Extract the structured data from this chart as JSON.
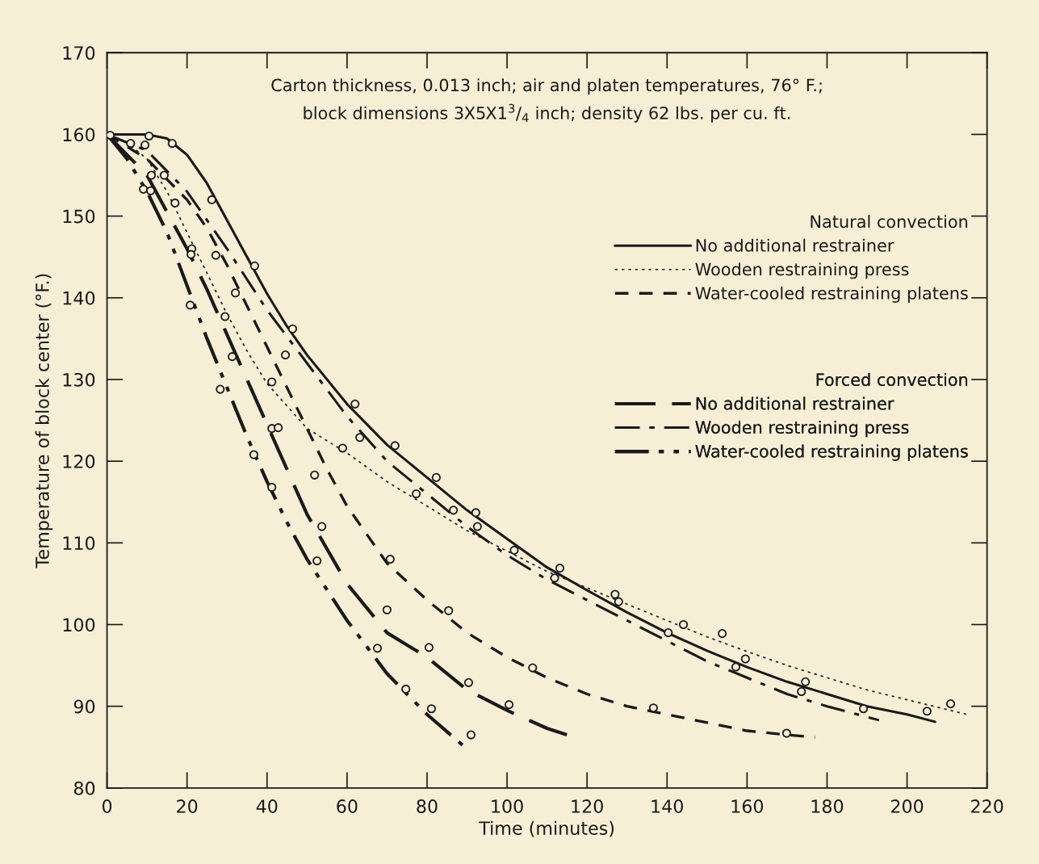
{
  "chart_data": {
    "type": "line",
    "xlabel": "Time (minutes)",
    "ylabel": "Temperature of block center (°F.)",
    "xlim": [
      0,
      220
    ],
    "xticks": [
      0,
      20,
      40,
      60,
      80,
      100,
      120,
      140,
      160,
      180,
      200,
      220
    ],
    "ylim": [
      80,
      170
    ],
    "yticks": [
      80,
      90,
      100,
      110,
      120,
      130,
      140,
      150,
      160,
      170
    ],
    "grid": false,
    "legend": "right",
    "marker": "none",
    "annotations": [
      "Carton thickness, 0.013 inch; air and platen temperatures, 76° F.;\nblock dimensions 3X5X1$^{3}$/$_{4}$ inch; density 62 lbs. per cu. ft.",
      "Natural convection",
      "Forced convection"
    ],
    "series": [
      {
        "name": "No additional restrainer",
        "color": "#1a1a1a",
        "line_style": "solid",
        "x": [
          0,
          10,
          15,
          20,
          25,
          30,
          35,
          40,
          45,
          50,
          60,
          70,
          80,
          90,
          100,
          110,
          120,
          130,
          140,
          150,
          160,
          170,
          180,
          190,
          200,
          207
        ],
        "values": [
          160,
          160,
          159.5,
          157.5,
          154,
          149.5,
          145,
          140.5,
          136.5,
          133,
          127,
          122,
          118,
          114,
          110.5,
          107,
          104.2,
          101.5,
          99,
          96.8,
          94.8,
          93,
          91.5,
          90,
          89,
          88.1
        ]
      },
      {
        "name": "Wooden restraining press",
        "color": "#1a1a1a",
        "line_style": "dotted",
        "x": [
          0,
          5,
          10,
          15,
          20,
          25,
          30,
          35,
          40,
          50,
          60,
          70,
          80,
          90,
          100,
          110,
          120,
          130,
          140,
          150,
          160,
          170,
          180,
          190,
          200,
          210,
          215
        ],
        "values": [
          160,
          159,
          157,
          153,
          148,
          143,
          138,
          133.5,
          129.5,
          124,
          121,
          117.5,
          114.5,
          111.5,
          109,
          106.5,
          104.5,
          102.5,
          100.5,
          98.5,
          96.7,
          95,
          93.5,
          92,
          90.8,
          89.6,
          89
        ]
      },
      {
        "name": "Water-cooled restraining platens",
        "color": "#1a1a1a",
        "line_style": "dashed",
        "x": [
          0,
          10,
          20,
          25,
          30,
          35,
          40,
          45,
          50,
          55,
          60,
          70,
          80,
          90,
          100,
          110,
          120,
          130,
          140,
          150,
          160,
          170,
          177
        ],
        "values": [
          160,
          157,
          152,
          148.5,
          144,
          139,
          134,
          129,
          124,
          119,
          114.5,
          107.5,
          103,
          99,
          96,
          93.5,
          91.5,
          90,
          89,
          88,
          87,
          86.5,
          86.2
        ]
      },
      {
        "name": "No additional restrainer",
        "color": "#1a1a1a",
        "line_style": "longdash",
        "x": [
          0,
          10,
          20,
          25,
          30,
          35,
          40,
          45,
          50,
          60,
          70,
          80,
          90,
          100,
          110,
          115
        ],
        "values": [
          160,
          155,
          146,
          141,
          135.5,
          130,
          124.5,
          119,
          113.5,
          105,
          99,
          96,
          92,
          89.5,
          87.3,
          86.5
        ]
      },
      {
        "name": "Wooden restraining press",
        "color": "#1a1a1a",
        "line_style": "dashdot",
        "x": [
          0,
          10,
          20,
          30,
          40,
          50,
          60,
          70,
          80,
          90,
          100,
          110,
          120,
          130,
          140,
          150,
          160,
          170,
          180,
          193
        ],
        "values": [
          160,
          158,
          153,
          146,
          138.5,
          132,
          125.5,
          120,
          116,
          112,
          108.5,
          105.5,
          103,
          100.5,
          98,
          95.5,
          93.5,
          91.5,
          90,
          88.3
        ]
      },
      {
        "name": "Water-cooled restraining platens",
        "color": "#1a1a1a",
        "line_style": "dashdotdot",
        "x": [
          0,
          5,
          10,
          15,
          20,
          25,
          30,
          35,
          40,
          45,
          50,
          60,
          70,
          80,
          89
        ],
        "values": [
          160,
          157,
          153,
          148,
          141.5,
          135,
          129,
          123,
          117.5,
          112.5,
          108,
          100.5,
          94,
          89,
          85.2
        ]
      },
      {
        "type": "scatter",
        "color": "#1a1a1a",
        "marker": "circle",
        "x": [
          0.8,
          5.9,
          10.5,
          9.5,
          16.3,
          11.1,
          14.3,
          9.1,
          10.9,
          17,
          26.2,
          21.2,
          21,
          27.2,
          36.9,
          32.1,
          20.8,
          29.5,
          46.4,
          44.6,
          31.3,
          41.2,
          62,
          28.3,
          63.2,
          72,
          58.9,
          41.2,
          42.8,
          36.7,
          82.3,
          41.2,
          51.9,
          77.3,
          86.6,
          92.2,
          92.6,
          53.7,
          70.8,
          52.5,
          70,
          85.4,
          67.6,
          80.5,
          90.4,
          74.7,
          81.1,
          91,
          101.8,
          113.2,
          111.9,
          127,
          127.9,
          144.1,
          140.3,
          153.8,
          159.6,
          157.2,
          174.6,
          173.6,
          210.9,
          205,
          189.1,
          106.4,
          136.6,
          169.9,
          100.5
        ],
        "values": [
          159.9,
          158.9,
          159.8,
          158.7,
          158.9,
          155,
          155,
          153.3,
          153.1,
          151.6,
          152,
          146,
          145.3,
          145.2,
          143.9,
          140.6,
          139.1,
          137.7,
          136.2,
          133,
          132.8,
          129.7,
          127,
          128.8,
          122.9,
          121.9,
          121.6,
          124,
          124.1,
          120.8,
          118,
          116.8,
          118.3,
          116,
          114,
          113.7,
          112,
          112,
          108,
          107.8,
          101.8,
          101.7,
          97.1,
          97.2,
          92.9,
          92.1,
          89.7,
          86.5,
          109.1,
          106.9,
          105.7,
          103.7,
          102.8,
          100,
          99,
          98.9,
          95.8,
          94.8,
          93,
          91.8,
          90.3,
          89.4,
          89.7,
          94.7,
          89.8,
          86.7,
          90.2
        ]
      }
    ]
  }
}
